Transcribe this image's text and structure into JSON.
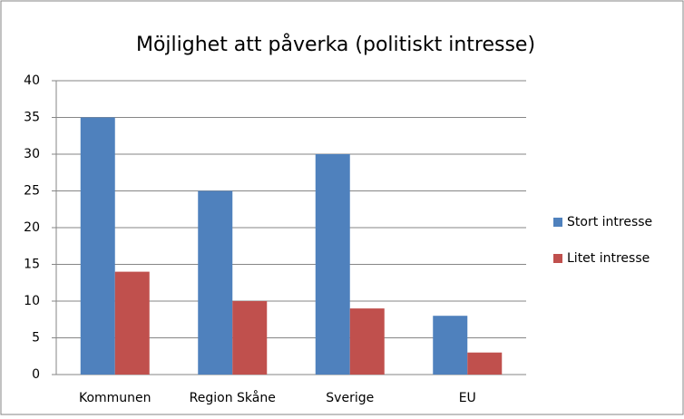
{
  "chart_data": {
    "type": "bar",
    "title": "Möjlighet att påverka (politiskt intresse)",
    "categories": [
      "Kommunen",
      "Region Skåne",
      "Sverige",
      "EU"
    ],
    "series": [
      {
        "name": "Stort intresse",
        "color": "#4f81bd",
        "values": [
          35,
          25,
          30,
          8
        ]
      },
      {
        "name": "Litet intresse",
        "color": "#c0504d",
        "values": [
          14,
          10,
          9,
          3
        ]
      }
    ],
    "ylim": [
      0,
      40
    ],
    "yticks": [
      0,
      5,
      10,
      15,
      20,
      25,
      30,
      35,
      40
    ],
    "grid": true,
    "legend": "right"
  }
}
